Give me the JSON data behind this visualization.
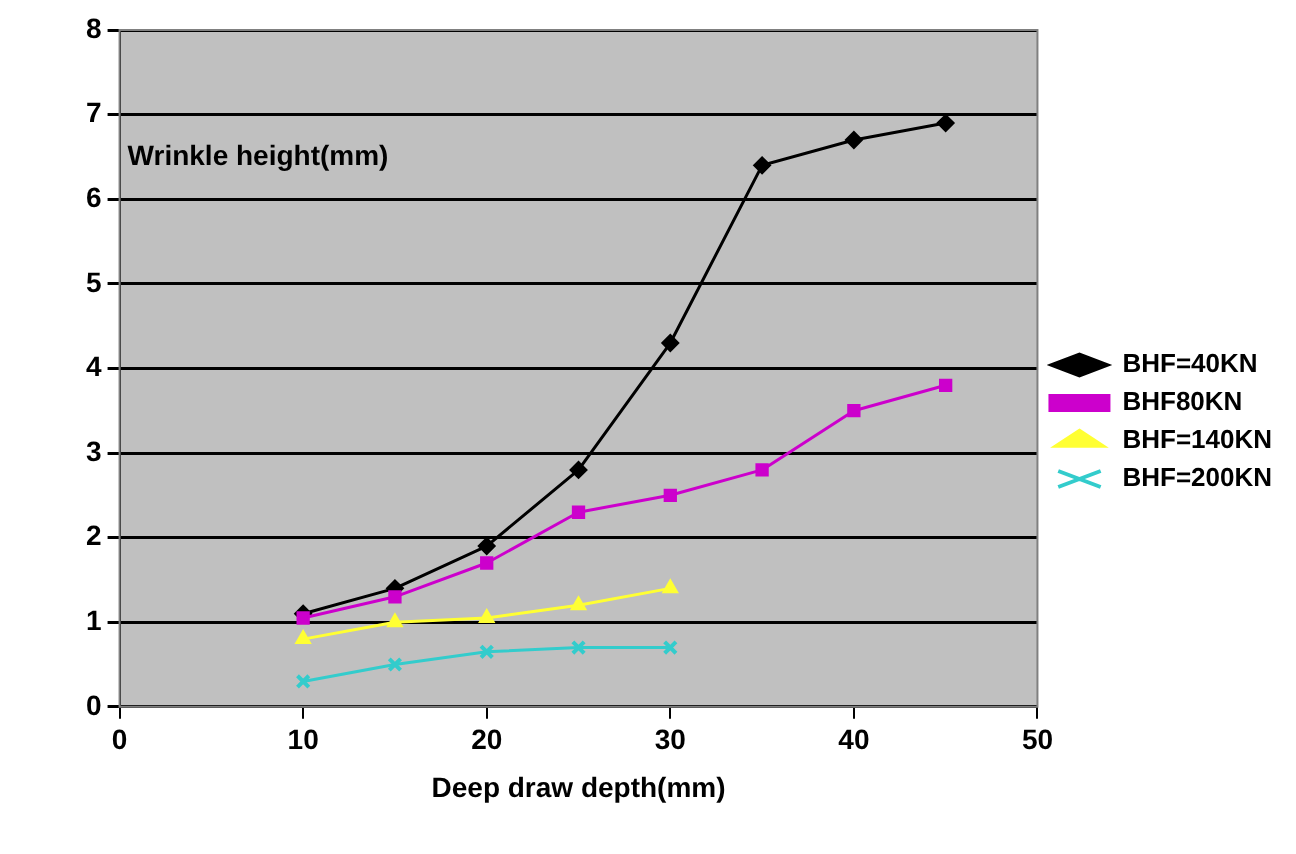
{
  "chart_data": {
    "type": "line",
    "xlabel": "Deep draw depth(mm)",
    "ylabel": "Wrinkle height(mm)",
    "x": [
      10,
      15,
      20,
      25,
      30,
      35,
      40,
      45
    ],
    "xlim": [
      0,
      50
    ],
    "xticks": [
      0,
      10,
      20,
      30,
      40,
      50
    ],
    "ylim": [
      0,
      8
    ],
    "yticks": [
      0,
      1,
      2,
      3,
      4,
      5,
      6,
      7,
      8
    ],
    "grid": "y",
    "legend": "right",
    "series": [
      {
        "name": "BHF=40KN",
        "color": "#000000",
        "marker": "diamond",
        "values": [
          1.1,
          1.4,
          1.9,
          2.8,
          4.3,
          6.4,
          6.7,
          6.9
        ]
      },
      {
        "name": "BHF80KN",
        "color": "#cc00cc",
        "marker": "square",
        "values": [
          1.05,
          1.3,
          1.7,
          2.3,
          2.5,
          2.8,
          3.5,
          3.8
        ]
      },
      {
        "name": "BHF=140KN",
        "color": "#ffff33",
        "marker": "triangle",
        "values": [
          0.8,
          1.0,
          1.05,
          1.2,
          1.4,
          null,
          null,
          null
        ]
      },
      {
        "name": "BHF=200KN",
        "color": "#33cccc",
        "marker": "cross",
        "values": [
          0.3,
          0.5,
          0.65,
          0.7,
          0.7,
          null,
          null,
          null
        ]
      }
    ]
  }
}
